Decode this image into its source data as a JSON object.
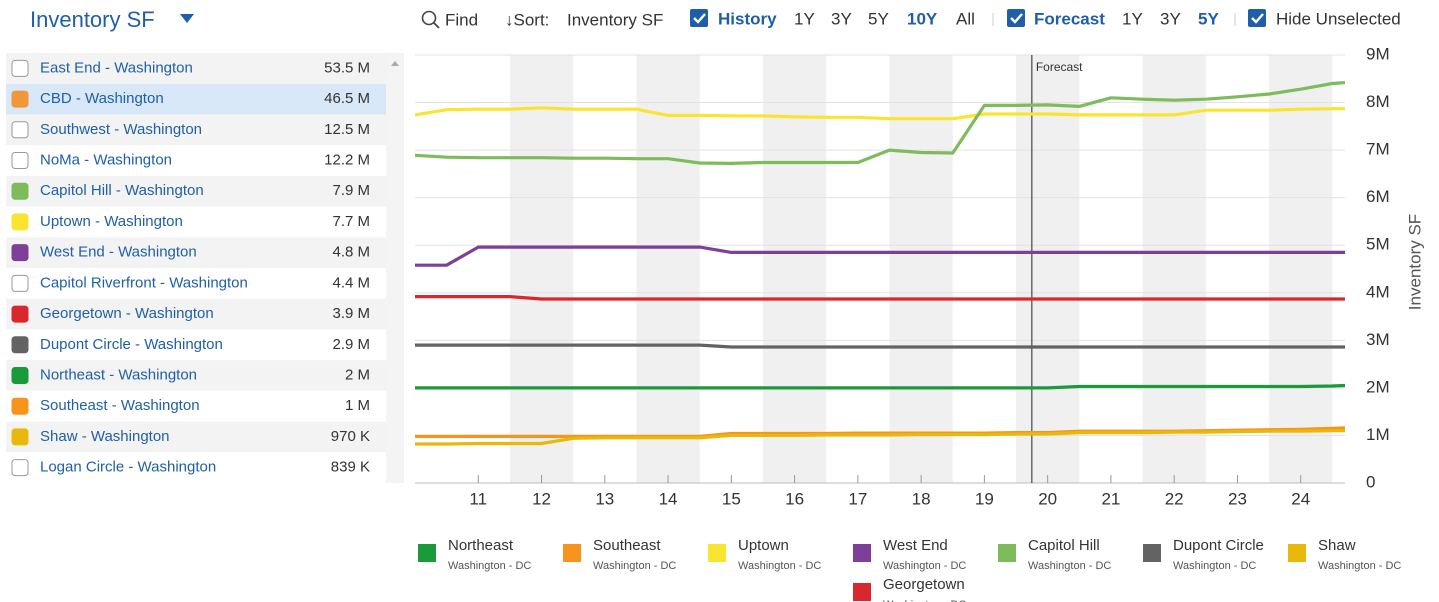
{
  "header": {
    "title": "Inventory SF",
    "find": "Find",
    "sort_label": "↓Sort:",
    "sort_value": "Inventory SF",
    "history": {
      "label": "History",
      "options": [
        "1Y",
        "3Y",
        "5Y",
        "10Y",
        "All"
      ],
      "selected_index": 3
    },
    "forecast": {
      "label": "Forecast",
      "options": [
        "1Y",
        "3Y",
        "5Y"
      ],
      "selected_index": 2
    },
    "hide_unselected": "Hide Unselected"
  },
  "list": [
    {
      "name": "East End - Washington",
      "value": "53.5 M",
      "checked": false
    },
    {
      "name": "CBD - Washington",
      "value": "46.5 M",
      "checked": true,
      "color": "#f0973a",
      "highlighted": true
    },
    {
      "name": "Southwest - Washington",
      "value": "12.5 M",
      "checked": false
    },
    {
      "name": "NoMa - Washington",
      "value": "12.2 M",
      "checked": false
    },
    {
      "name": "Capitol Hill - Washington",
      "value": "7.9 M",
      "checked": true,
      "color": "#7dbb5b"
    },
    {
      "name": "Uptown - Washington",
      "value": "7.7 M",
      "checked": true,
      "color": "#f9e531"
    },
    {
      "name": "West End - Washington",
      "value": "4.8 M",
      "checked": true,
      "color": "#7e3f98"
    },
    {
      "name": "Capitol Riverfront - Washington",
      "value": "4.4 M",
      "checked": false
    },
    {
      "name": "Georgetown - Washington",
      "value": "3.9 M",
      "checked": true,
      "color": "#d9272e"
    },
    {
      "name": "Dupont Circle - Washington",
      "value": "2.9 M",
      "checked": true,
      "color": "#636363"
    },
    {
      "name": "Northeast - Washington",
      "value": "2 M",
      "checked": true,
      "color": "#1a9a3a"
    },
    {
      "name": "Southeast - Washington",
      "value": "1 M",
      "checked": true,
      "color": "#f7941d"
    },
    {
      "name": "Shaw - Washington",
      "value": "970 K",
      "checked": true,
      "color": "#e8b90b"
    },
    {
      "name": "Logan Circle - Washington",
      "value": "839 K",
      "checked": false
    }
  ],
  "chart_data": {
    "type": "line",
    "y_label": "Inventory SF",
    "x": [
      10,
      10.5,
      11,
      11.5,
      12,
      12.5,
      13,
      13.5,
      14,
      14.5,
      15,
      15.5,
      16,
      16.5,
      17,
      17.5,
      18,
      18.5,
      19,
      19.5,
      20,
      20.5,
      21,
      21.5,
      22,
      22.5,
      23,
      23.5,
      24,
      24.5,
      24.7
    ],
    "xlim": [
      10,
      24.7
    ],
    "xticks": [
      11,
      12,
      13,
      14,
      15,
      16,
      17,
      18,
      19,
      20,
      21,
      22,
      23,
      24
    ],
    "ylim": [
      0,
      9000000
    ],
    "yticks": [
      0,
      {
        "value": 1000000,
        "label": "1M"
      },
      {
        "value": 2000000,
        "label": "2M"
      },
      {
        "value": 3000000,
        "label": "3M"
      },
      {
        "value": 4000000,
        "label": "4M"
      },
      {
        "value": 5000000,
        "label": "5M"
      },
      {
        "value": 6000000,
        "label": "6M"
      },
      {
        "value": 7000000,
        "label": "7M"
      },
      {
        "value": 8000000,
        "label": "8M"
      },
      {
        "value": 9000000,
        "label": "9M"
      }
    ],
    "grid": true,
    "forecast_start": 19.75,
    "forecast_label": "Forecast",
    "series": [
      {
        "name": "Northeast",
        "region": "Washington - DC",
        "color": "#1a9a3a",
        "values": [
          2000000,
          2000000,
          2000000,
          2000000,
          2000000,
          2000000,
          2000000,
          2000000,
          2000000,
          2000000,
          2000000,
          2000000,
          2000000,
          2000000,
          2000000,
          2000000,
          2000000,
          2000000,
          2000000,
          2000000,
          2000000,
          2030000,
          2030000,
          2030000,
          2030000,
          2030000,
          2030000,
          2030000,
          2030000,
          2040000,
          2050000
        ]
      },
      {
        "name": "Southeast",
        "region": "Washington - DC",
        "color": "#f7941d",
        "values": [
          980000,
          980000,
          980000,
          980000,
          980000,
          980000,
          980000,
          980000,
          980000,
          980000,
          1040000,
          1040000,
          1040000,
          1040000,
          1050000,
          1050000,
          1050000,
          1050000,
          1050000,
          1060000,
          1060000,
          1090000,
          1090000,
          1090000,
          1090000,
          1100000,
          1110000,
          1120000,
          1130000,
          1150000,
          1160000
        ]
      },
      {
        "name": "Uptown",
        "region": "Washington - DC",
        "color": "#f9e531",
        "values": [
          7740000,
          7850000,
          7860000,
          7860000,
          7890000,
          7860000,
          7860000,
          7860000,
          7730000,
          7730000,
          7720000,
          7720000,
          7700000,
          7690000,
          7690000,
          7660000,
          7660000,
          7660000,
          7760000,
          7760000,
          7760000,
          7740000,
          7740000,
          7740000,
          7740000,
          7840000,
          7840000,
          7840000,
          7860000,
          7870000,
          7870000
        ]
      },
      {
        "name": "West End",
        "region": "Washington - DC",
        "color": "#7e3f98",
        "values": [
          4580000,
          4580000,
          4960000,
          4960000,
          4960000,
          4960000,
          4960000,
          4960000,
          4960000,
          4960000,
          4850000,
          4850000,
          4850000,
          4850000,
          4850000,
          4850000,
          4850000,
          4850000,
          4850000,
          4850000,
          4850000,
          4850000,
          4850000,
          4850000,
          4850000,
          4850000,
          4850000,
          4850000,
          4850000,
          4850000,
          4850000
        ]
      },
      {
        "name": "Capitol Hill",
        "region": "Washington - DC",
        "color": "#7dbb5b",
        "values": [
          6890000,
          6850000,
          6840000,
          6840000,
          6840000,
          6830000,
          6830000,
          6820000,
          6820000,
          6730000,
          6720000,
          6740000,
          6740000,
          6740000,
          6740000,
          7000000,
          6950000,
          6940000,
          7940000,
          7940000,
          7950000,
          7920000,
          8100000,
          8070000,
          8050000,
          8070000,
          8120000,
          8180000,
          8280000,
          8400000,
          8420000
        ]
      },
      {
        "name": "Dupont Circle",
        "region": "Washington - DC",
        "color": "#636363",
        "values": [
          2900000,
          2900000,
          2900000,
          2900000,
          2900000,
          2900000,
          2900000,
          2900000,
          2900000,
          2900000,
          2860000,
          2860000,
          2860000,
          2860000,
          2860000,
          2860000,
          2860000,
          2860000,
          2860000,
          2860000,
          2860000,
          2860000,
          2860000,
          2860000,
          2860000,
          2860000,
          2860000,
          2860000,
          2860000,
          2860000,
          2860000
        ]
      },
      {
        "name": "Shaw",
        "region": "Washington - DC",
        "color": "#e8b90b",
        "values": [
          820000,
          820000,
          830000,
          830000,
          830000,
          940000,
          950000,
          950000,
          950000,
          950000,
          1000000,
          1000000,
          1000000,
          1010000,
          1010000,
          1010000,
          1020000,
          1020000,
          1020000,
          1030000,
          1030000,
          1060000,
          1060000,
          1060000,
          1070000,
          1070000,
          1080000,
          1090000,
          1090000,
          1100000,
          1100000
        ]
      },
      {
        "name": "Georgetown",
        "region": "Washington - DC",
        "color": "#d9272e",
        "values": [
          3920000,
          3920000,
          3920000,
          3920000,
          3870000,
          3870000,
          3870000,
          3870000,
          3870000,
          3870000,
          3870000,
          3870000,
          3870000,
          3870000,
          3870000,
          3870000,
          3870000,
          3870000,
          3870000,
          3870000,
          3870000,
          3870000,
          3870000,
          3870000,
          3870000,
          3870000,
          3870000,
          3870000,
          3870000,
          3870000,
          3870000
        ]
      }
    ]
  }
}
